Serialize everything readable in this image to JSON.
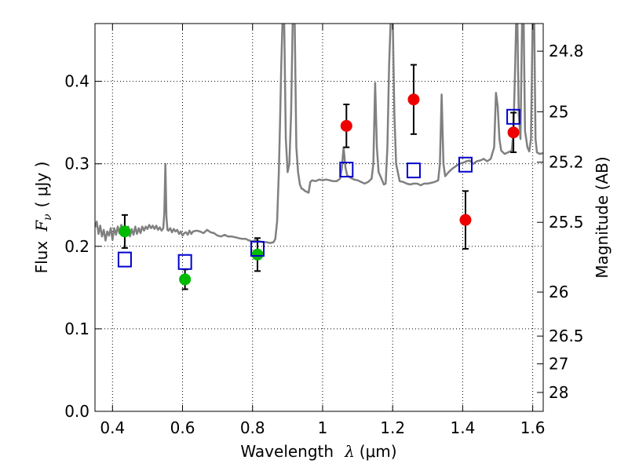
{
  "chart_data": {
    "type": "scatter",
    "xlabel": "Wavelength",
    "xlabel_symbol": "λ",
    "xlabel_unit": "(μm)",
    "ylabel": "Flux",
    "ylabel_symbol": "F",
    "ylabel_subscript": "ν",
    "ylabel_unit": "( μJy )",
    "y2label": "Magnitude (AB)",
    "xlim": [
      0.35,
      1.63
    ],
    "ylim": [
      0.0,
      0.47
    ],
    "grid": true,
    "x_ticks": [
      {
        "value": 0.4,
        "label": "0.4"
      },
      {
        "value": 0.6,
        "label": "0.6"
      },
      {
        "value": 0.8,
        "label": "0.8"
      },
      {
        "value": 1.0,
        "label": "1"
      },
      {
        "value": 1.2,
        "label": "1.2"
      },
      {
        "value": 1.4,
        "label": "1.4"
      },
      {
        "value": 1.6,
        "label": "1.6"
      }
    ],
    "y_ticks": [
      {
        "value": 0.0,
        "label": "0.0"
      },
      {
        "value": 0.1,
        "label": "0.1"
      },
      {
        "value": 0.2,
        "label": "0.2"
      },
      {
        "value": 0.3,
        "label": "0.3"
      },
      {
        "value": 0.4,
        "label": "0.4"
      }
    ],
    "y2_ticks": [
      {
        "value": 24.8,
        "label": "24.8"
      },
      {
        "value": 25.0,
        "label": "25"
      },
      {
        "value": 25.2,
        "label": "25.2"
      },
      {
        "value": 25.5,
        "label": "25.5"
      },
      {
        "value": 26.0,
        "label": "26"
      },
      {
        "value": 26.5,
        "label": "26.5"
      },
      {
        "value": 27.0,
        "label": "27"
      },
      {
        "value": 28.0,
        "label": "28"
      }
    ],
    "ab_zero_point_ujy": 3631000000,
    "colors": {
      "spectrum": "#808080",
      "green": "#00bb00",
      "red": "#ee0000",
      "model": "#0000cc",
      "errorbar": "#000000"
    },
    "series": [
      {
        "name": "spectrum",
        "kind": "line",
        "points": [
          [
            0.35,
            0.223
          ],
          [
            0.355,
            0.23
          ],
          [
            0.36,
            0.215
          ],
          [
            0.365,
            0.225
          ],
          [
            0.37,
            0.212
          ],
          [
            0.375,
            0.22
          ],
          [
            0.38,
            0.207
          ],
          [
            0.385,
            0.218
          ],
          [
            0.39,
            0.213
          ],
          [
            0.395,
            0.222
          ],
          [
            0.4,
            0.208
          ],
          [
            0.405,
            0.222
          ],
          [
            0.41,
            0.214
          ],
          [
            0.415,
            0.224
          ],
          [
            0.42,
            0.216
          ],
          [
            0.425,
            0.226
          ],
          [
            0.43,
            0.218
          ],
          [
            0.435,
            0.225
          ],
          [
            0.44,
            0.217
          ],
          [
            0.445,
            0.224
          ],
          [
            0.45,
            0.212
          ],
          [
            0.455,
            0.221
          ],
          [
            0.46,
            0.214
          ],
          [
            0.465,
            0.224
          ],
          [
            0.47,
            0.215
          ],
          [
            0.475,
            0.222
          ],
          [
            0.48,
            0.216
          ],
          [
            0.485,
            0.224
          ],
          [
            0.49,
            0.219
          ],
          [
            0.495,
            0.224
          ],
          [
            0.5,
            0.221
          ],
          [
            0.505,
            0.226
          ],
          [
            0.51,
            0.222
          ],
          [
            0.515,
            0.225
          ],
          [
            0.52,
            0.221
          ],
          [
            0.525,
            0.225
          ],
          [
            0.53,
            0.22
          ],
          [
            0.535,
            0.223
          ],
          [
            0.54,
            0.219
          ],
          [
            0.545,
            0.222
          ],
          [
            0.548,
            0.24
          ],
          [
            0.551,
            0.3
          ],
          [
            0.554,
            0.236
          ],
          [
            0.557,
            0.22
          ],
          [
            0.56,
            0.219
          ],
          [
            0.565,
            0.222
          ],
          [
            0.57,
            0.217
          ],
          [
            0.575,
            0.221
          ],
          [
            0.58,
            0.218
          ],
          [
            0.585,
            0.22
          ],
          [
            0.59,
            0.215
          ],
          [
            0.595,
            0.218
          ],
          [
            0.6,
            0.213
          ],
          [
            0.605,
            0.216
          ],
          [
            0.61,
            0.217
          ],
          [
            0.615,
            0.214
          ],
          [
            0.62,
            0.219
          ],
          [
            0.625,
            0.215
          ],
          [
            0.63,
            0.218
          ],
          [
            0.64,
            0.219
          ],
          [
            0.65,
            0.218
          ],
          [
            0.66,
            0.216
          ],
          [
            0.67,
            0.22
          ],
          [
            0.68,
            0.217
          ],
          [
            0.69,
            0.216
          ],
          [
            0.7,
            0.213
          ],
          [
            0.71,
            0.212
          ],
          [
            0.72,
            0.214
          ],
          [
            0.73,
            0.212
          ],
          [
            0.74,
            0.212
          ],
          [
            0.75,
            0.211
          ],
          [
            0.76,
            0.21
          ],
          [
            0.77,
            0.209
          ],
          [
            0.78,
            0.209
          ],
          [
            0.79,
            0.207
          ],
          [
            0.8,
            0.206
          ],
          [
            0.81,
            0.208
          ],
          [
            0.82,
            0.206
          ],
          [
            0.83,
            0.205
          ],
          [
            0.84,
            0.205
          ],
          [
            0.85,
            0.204
          ],
          [
            0.86,
            0.205
          ],
          [
            0.865,
            0.209
          ],
          [
            0.87,
            0.23
          ],
          [
            0.875,
            0.29
          ],
          [
            0.878,
            0.34
          ],
          [
            0.882,
            0.42
          ],
          [
            0.886,
            0.48
          ],
          [
            0.89,
            0.48
          ],
          [
            0.895,
            0.33
          ],
          [
            0.9,
            0.29
          ],
          [
            0.905,
            0.3
          ],
          [
            0.91,
            0.36
          ],
          [
            0.915,
            0.48
          ],
          [
            0.92,
            0.48
          ],
          [
            0.925,
            0.32
          ],
          [
            0.93,
            0.29
          ],
          [
            0.935,
            0.275
          ],
          [
            0.94,
            0.27
          ],
          [
            0.945,
            0.269
          ],
          [
            0.95,
            0.267
          ],
          [
            0.955,
            0.266
          ],
          [
            0.96,
            0.265
          ],
          [
            0.965,
            0.278
          ],
          [
            0.97,
            0.28
          ],
          [
            0.98,
            0.279
          ],
          [
            0.99,
            0.281
          ],
          [
            1.0,
            0.28
          ],
          [
            1.01,
            0.281
          ],
          [
            1.02,
            0.28
          ],
          [
            1.03,
            0.279
          ],
          [
            1.04,
            0.279
          ],
          [
            1.05,
            0.282
          ],
          [
            1.055,
            0.295
          ],
          [
            1.06,
            0.32
          ],
          [
            1.065,
            0.296
          ],
          [
            1.07,
            0.286
          ],
          [
            1.08,
            0.283
          ],
          [
            1.09,
            0.281
          ],
          [
            1.1,
            0.28
          ],
          [
            1.11,
            0.278
          ],
          [
            1.12,
            0.276
          ],
          [
            1.13,
            0.278
          ],
          [
            1.14,
            0.282
          ],
          [
            1.145,
            0.3
          ],
          [
            1.15,
            0.398
          ],
          [
            1.155,
            0.32
          ],
          [
            1.16,
            0.29
          ],
          [
            1.165,
            0.285
          ],
          [
            1.17,
            0.28
          ],
          [
            1.175,
            0.275
          ],
          [
            1.18,
            0.276
          ],
          [
            1.185,
            0.32
          ],
          [
            1.19,
            0.42
          ],
          [
            1.195,
            0.48
          ],
          [
            1.2,
            0.48
          ],
          [
            1.205,
            0.36
          ],
          [
            1.21,
            0.3
          ],
          [
            1.22,
            0.279
          ],
          [
            1.23,
            0.278
          ],
          [
            1.24,
            0.276
          ],
          [
            1.25,
            0.275
          ],
          [
            1.26,
            0.276
          ],
          [
            1.27,
            0.276
          ],
          [
            1.28,
            0.274
          ],
          [
            1.29,
            0.276
          ],
          [
            1.3,
            0.276
          ],
          [
            1.31,
            0.277
          ],
          [
            1.32,
            0.278
          ],
          [
            1.33,
            0.28
          ],
          [
            1.335,
            0.3
          ],
          [
            1.34,
            0.384
          ],
          [
            1.345,
            0.3
          ],
          [
            1.35,
            0.285
          ],
          [
            1.36,
            0.29
          ],
          [
            1.37,
            0.294
          ],
          [
            1.38,
            0.297
          ],
          [
            1.39,
            0.3
          ],
          [
            1.4,
            0.301
          ],
          [
            1.41,
            0.303
          ],
          [
            1.42,
            0.304
          ],
          [
            1.43,
            0.3
          ],
          [
            1.44,
            0.303
          ],
          [
            1.45,
            0.304
          ],
          [
            1.46,
            0.306
          ],
          [
            1.47,
            0.303
          ],
          [
            1.48,
            0.306
          ],
          [
            1.49,
            0.32
          ],
          [
            1.495,
            0.386
          ],
          [
            1.5,
            0.37
          ],
          [
            1.505,
            0.33
          ],
          [
            1.51,
            0.316
          ],
          [
            1.52,
            0.312
          ],
          [
            1.53,
            0.314
          ],
          [
            1.54,
            0.316
          ],
          [
            1.545,
            0.34
          ],
          [
            1.55,
            0.42
          ],
          [
            1.553,
            0.48
          ],
          [
            1.556,
            0.48
          ],
          [
            1.56,
            0.36
          ],
          [
            1.565,
            0.33
          ],
          [
            1.57,
            0.48
          ],
          [
            1.574,
            0.48
          ],
          [
            1.578,
            0.34
          ],
          [
            1.585,
            0.32
          ],
          [
            1.59,
            0.315
          ],
          [
            1.595,
            0.33
          ],
          [
            1.6,
            0.48
          ],
          [
            1.604,
            0.48
          ],
          [
            1.608,
            0.33
          ],
          [
            1.612,
            0.314
          ],
          [
            1.62,
            0.312
          ],
          [
            1.63,
            0.313
          ]
        ]
      },
      {
        "name": "green photometry",
        "kind": "errorbar",
        "points": [
          {
            "x": 0.435,
            "y": 0.218,
            "err": 0.02
          },
          {
            "x": 0.607,
            "y": 0.16,
            "err": 0.012
          },
          {
            "x": 0.814,
            "y": 0.19,
            "err": 0.02
          }
        ]
      },
      {
        "name": "red photometry",
        "kind": "errorbar",
        "points": [
          {
            "x": 1.068,
            "y": 0.346,
            "err": 0.026
          },
          {
            "x": 1.26,
            "y": 0.378,
            "err": 0.042
          },
          {
            "x": 1.408,
            "y": 0.232,
            "err": 0.035
          },
          {
            "x": 1.545,
            "y": 0.338,
            "err": 0.024
          }
        ]
      },
      {
        "name": "model photometry",
        "kind": "square",
        "points": [
          {
            "x": 0.435,
            "y": 0.184
          },
          {
            "x": 0.607,
            "y": 0.181
          },
          {
            "x": 0.814,
            "y": 0.197
          },
          {
            "x": 1.068,
            "y": 0.293
          },
          {
            "x": 1.26,
            "y": 0.292
          },
          {
            "x": 1.408,
            "y": 0.299
          },
          {
            "x": 1.545,
            "y": 0.357
          }
        ]
      }
    ]
  }
}
